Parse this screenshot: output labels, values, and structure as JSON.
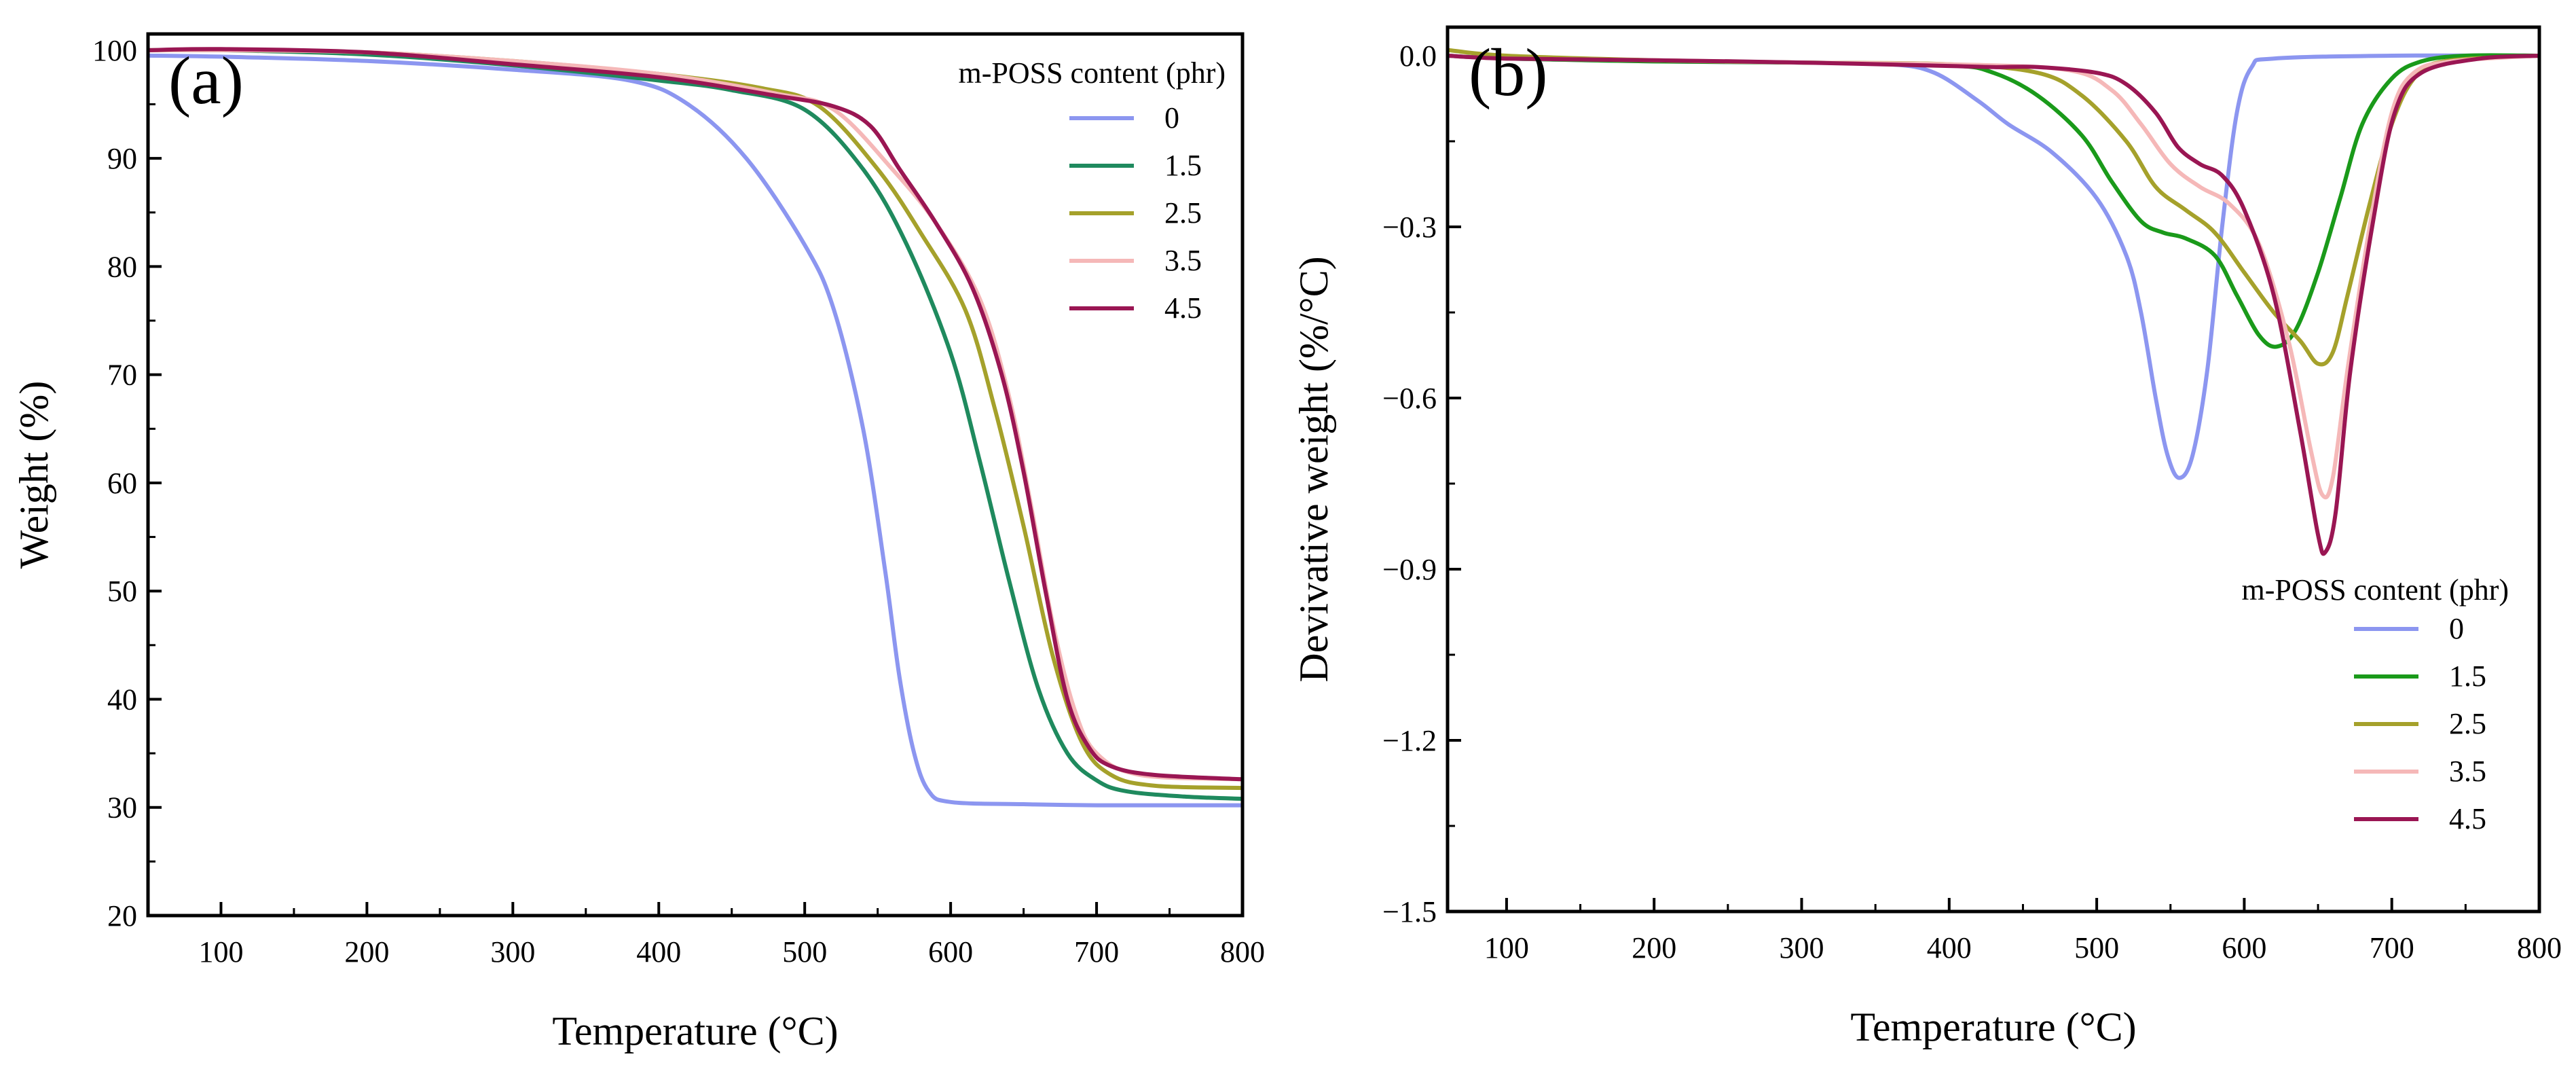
{
  "figure": {
    "panels": [
      {
        "label": "(a)"
      },
      {
        "label": "(b)"
      }
    ]
  },
  "chart_data": [
    {
      "type": "line",
      "panel_label": "(a)",
      "title": "",
      "xlabel": "Temperature (°C)",
      "ylabel": "Weight (%)",
      "xlim": [
        50,
        800
      ],
      "ylim": [
        20,
        101.5
      ],
      "xticks": [
        100,
        200,
        300,
        400,
        500,
        600,
        700,
        800
      ],
      "yticks": [
        20,
        30,
        40,
        50,
        60,
        70,
        80,
        90,
        100
      ],
      "ytick_labels": [
        "20",
        "30",
        "40",
        "50",
        "60",
        "70",
        "80",
        "90",
        "100"
      ],
      "legend_title": "m-POSS content (phr)",
      "legend_position": "top-right",
      "series": [
        {
          "name": "0",
          "color": "#8c96f0",
          "points": [
            [
              50,
              99.5
            ],
            [
              100,
              99.4
            ],
            [
              200,
              99
            ],
            [
              300,
              98.2
            ],
            [
              380,
              97.2
            ],
            [
              420,
              95
            ],
            [
              460,
              90
            ],
            [
              500,
              82
            ],
            [
              520,
              76
            ],
            [
              540,
              65
            ],
            [
              555,
              52
            ],
            [
              565,
              42
            ],
            [
              575,
              35
            ],
            [
              585,
              31.5
            ],
            [
              600,
              30.5
            ],
            [
              650,
              30.3
            ],
            [
              700,
              30.2
            ],
            [
              800,
              30.2
            ]
          ]
        },
        {
          "name": "1.5",
          "color": "#1f8a5e",
          "points": [
            [
              50,
              100
            ],
            [
              100,
              100
            ],
            [
              200,
              99.6
            ],
            [
              300,
              98.6
            ],
            [
              400,
              97.2
            ],
            [
              450,
              96.3
            ],
            [
              500,
              94.5
            ],
            [
              540,
              89
            ],
            [
              570,
              82
            ],
            [
              600,
              72
            ],
            [
              620,
              62
            ],
            [
              640,
              51
            ],
            [
              660,
              41
            ],
            [
              680,
              35
            ],
            [
              700,
              32.5
            ],
            [
              720,
              31.5
            ],
            [
              760,
              31
            ],
            [
              800,
              30.8
            ]
          ]
        },
        {
          "name": "2.5",
          "color": "#a5a12b",
          "points": [
            [
              50,
              100
            ],
            [
              100,
              100
            ],
            [
              200,
              99.8
            ],
            [
              300,
              99
            ],
            [
              400,
              97.8
            ],
            [
              470,
              96.5
            ],
            [
              510,
              94.8
            ],
            [
              550,
              89
            ],
            [
              580,
              83
            ],
            [
              610,
              76
            ],
            [
              630,
              67
            ],
            [
              650,
              56
            ],
            [
              670,
              44
            ],
            [
              690,
              36
            ],
            [
              710,
              33
            ],
            [
              740,
              32
            ],
            [
              800,
              31.8
            ]
          ]
        },
        {
          "name": "3.5",
          "color": "#f5b8b8",
          "points": [
            [
              50,
              100
            ],
            [
              100,
              100
            ],
            [
              200,
              99.8
            ],
            [
              300,
              99
            ],
            [
              400,
              97.8
            ],
            [
              480,
              96
            ],
            [
              520,
              94.5
            ],
            [
              560,
              89
            ],
            [
              590,
              84
            ],
            [
              620,
              77
            ],
            [
              640,
              68
            ],
            [
              655,
              58
            ],
            [
              670,
              47
            ],
            [
              685,
              39
            ],
            [
              700,
              35
            ],
            [
              730,
              33
            ],
            [
              800,
              32.6
            ]
          ]
        },
        {
          "name": "4.5",
          "color": "#9a1653",
          "points": [
            [
              50,
              100
            ],
            [
              100,
              100.1
            ],
            [
              200,
              99.8
            ],
            [
              300,
              98.7
            ],
            [
              400,
              97.5
            ],
            [
              480,
              95.8
            ],
            [
              520,
              94.8
            ],
            [
              545,
              93
            ],
            [
              565,
              89
            ],
            [
              590,
              84
            ],
            [
              615,
              78
            ],
            [
              635,
              70
            ],
            [
              650,
              61
            ],
            [
              665,
              50
            ],
            [
              680,
              40
            ],
            [
              695,
              35.5
            ],
            [
              710,
              33.8
            ],
            [
              740,
              33
            ],
            [
              800,
              32.6
            ]
          ]
        }
      ]
    },
    {
      "type": "line",
      "panel_label": "(b)",
      "title": "",
      "xlabel": "Temperature (°C)",
      "ylabel": "Devivative weight (%/°C)",
      "xlim": [
        60,
        800
      ],
      "ylim": [
        -1.5,
        0.05
      ],
      "xticks": [
        100,
        200,
        300,
        400,
        500,
        600,
        700,
        800
      ],
      "yticks": [
        0,
        -0.3,
        -0.6,
        -0.9,
        -1.2,
        -1.5
      ],
      "ytick_labels": [
        "0.0",
        "−0.3",
        "−0.6",
        "−0.9",
        "−1.2",
        "−1.5"
      ],
      "legend_title": "m-POSS content (phr)",
      "legend_position": "bottom-right",
      "series": [
        {
          "name": "0",
          "color": "#8c96f0",
          "points": [
            [
              60,
              0
            ],
            [
              100,
              -0.005
            ],
            [
              200,
              -0.01
            ],
            [
              300,
              -0.012
            ],
            [
              360,
              -0.015
            ],
            [
              390,
              -0.03
            ],
            [
              420,
              -0.08
            ],
            [
              440,
              -0.12
            ],
            [
              470,
              -0.17
            ],
            [
              500,
              -0.25
            ],
            [
              520,
              -0.35
            ],
            [
              530,
              -0.45
            ],
            [
              540,
              -0.6
            ],
            [
              548,
              -0.7
            ],
            [
              556,
              -0.74
            ],
            [
              565,
              -0.7
            ],
            [
              575,
              -0.55
            ],
            [
              585,
              -0.3
            ],
            [
              595,
              -0.1
            ],
            [
              605,
              -0.02
            ],
            [
              620,
              -0.005
            ],
            [
              700,
              0
            ],
            [
              800,
              0
            ]
          ]
        },
        {
          "name": "1.5",
          "color": "#1a9a1a",
          "points": [
            [
              60,
              0
            ],
            [
              100,
              -0.005
            ],
            [
              200,
              -0.01
            ],
            [
              300,
              -0.012
            ],
            [
              400,
              -0.017
            ],
            [
              430,
              -0.03
            ],
            [
              460,
              -0.07
            ],
            [
              490,
              -0.14
            ],
            [
              510,
              -0.22
            ],
            [
              530,
              -0.29
            ],
            [
              545,
              -0.31
            ],
            [
              560,
              -0.32
            ],
            [
              580,
              -0.35
            ],
            [
              595,
              -0.42
            ],
            [
              610,
              -0.49
            ],
            [
              622,
              -0.51
            ],
            [
              635,
              -0.48
            ],
            [
              650,
              -0.38
            ],
            [
              665,
              -0.25
            ],
            [
              680,
              -0.12
            ],
            [
              700,
              -0.04
            ],
            [
              720,
              -0.01
            ],
            [
              750,
              0
            ],
            [
              800,
              0
            ]
          ]
        },
        {
          "name": "2.5",
          "color": "#a5a12b",
          "points": [
            [
              60,
              0.01
            ],
            [
              100,
              0
            ],
            [
              200,
              -0.008
            ],
            [
              300,
              -0.012
            ],
            [
              400,
              -0.015
            ],
            [
              460,
              -0.03
            ],
            [
              490,
              -0.07
            ],
            [
              520,
              -0.15
            ],
            [
              540,
              -0.23
            ],
            [
              560,
              -0.27
            ],
            [
              580,
              -0.31
            ],
            [
              600,
              -0.38
            ],
            [
              620,
              -0.45
            ],
            [
              638,
              -0.5
            ],
            [
              650,
              -0.54
            ],
            [
              660,
              -0.52
            ],
            [
              670,
              -0.42
            ],
            [
              685,
              -0.26
            ],
            [
              700,
              -0.12
            ],
            [
              715,
              -0.04
            ],
            [
              735,
              -0.01
            ],
            [
              800,
              0
            ]
          ]
        },
        {
          "name": "3.5",
          "color": "#f5b8b8",
          "points": [
            [
              60,
              0
            ],
            [
              100,
              -0.005
            ],
            [
              200,
              -0.008
            ],
            [
              300,
              -0.012
            ],
            [
              400,
              -0.015
            ],
            [
              480,
              -0.025
            ],
            [
              510,
              -0.06
            ],
            [
              530,
              -0.12
            ],
            [
              550,
              -0.19
            ],
            [
              570,
              -0.23
            ],
            [
              590,
              -0.26
            ],
            [
              610,
              -0.33
            ],
            [
              630,
              -0.5
            ],
            [
              645,
              -0.69
            ],
            [
              653,
              -0.77
            ],
            [
              660,
              -0.74
            ],
            [
              670,
              -0.55
            ],
            [
              685,
              -0.3
            ],
            [
              700,
              -0.1
            ],
            [
              715,
              -0.03
            ],
            [
              740,
              -0.01
            ],
            [
              800,
              0
            ]
          ]
        },
        {
          "name": "4.5",
          "color": "#9a1653",
          "points": [
            [
              60,
              0
            ],
            [
              100,
              -0.005
            ],
            [
              200,
              -0.008
            ],
            [
              300,
              -0.012
            ],
            [
              400,
              -0.018
            ],
            [
              430,
              -0.02
            ],
            [
              460,
              -0.02
            ],
            [
              500,
              -0.03
            ],
            [
              520,
              -0.05
            ],
            [
              540,
              -0.1
            ],
            [
              555,
              -0.16
            ],
            [
              570,
              -0.19
            ],
            [
              585,
              -0.21
            ],
            [
              600,
              -0.27
            ],
            [
              620,
              -0.42
            ],
            [
              638,
              -0.66
            ],
            [
              650,
              -0.84
            ],
            [
              655,
              -0.87
            ],
            [
              662,
              -0.8
            ],
            [
              672,
              -0.55
            ],
            [
              688,
              -0.28
            ],
            [
              702,
              -0.1
            ],
            [
              720,
              -0.03
            ],
            [
              760,
              -0.005
            ],
            [
              800,
              0
            ]
          ]
        }
      ]
    }
  ]
}
